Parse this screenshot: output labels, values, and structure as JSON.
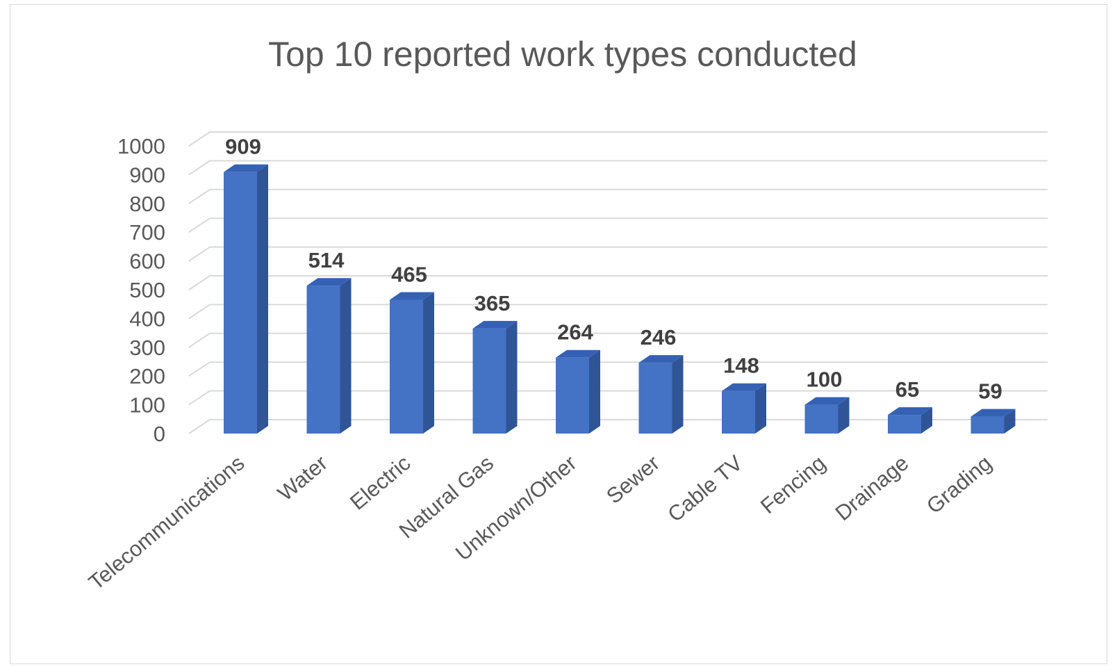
{
  "chart_data": {
    "type": "bar",
    "title": "Top 10 reported work types conducted",
    "xlabel": "",
    "ylabel": "",
    "categories": [
      "Telecommunications",
      "Water",
      "Electric",
      "Natural Gas",
      "Unknown/Other",
      "Sewer",
      "Cable TV",
      "Fencing",
      "Drainage",
      "Grading"
    ],
    "values": [
      909,
      514,
      465,
      365,
      264,
      246,
      148,
      100,
      65,
      59
    ],
    "ylim": [
      0,
      1000
    ],
    "yticks": [
      "0",
      "100",
      "200",
      "300",
      "400",
      "500",
      "600",
      "700",
      "800",
      "900",
      "1000"
    ],
    "grid": true,
    "legend": "none",
    "bar_color": "#4472c4",
    "data_labels": true,
    "style": "3d-clustered-column"
  }
}
